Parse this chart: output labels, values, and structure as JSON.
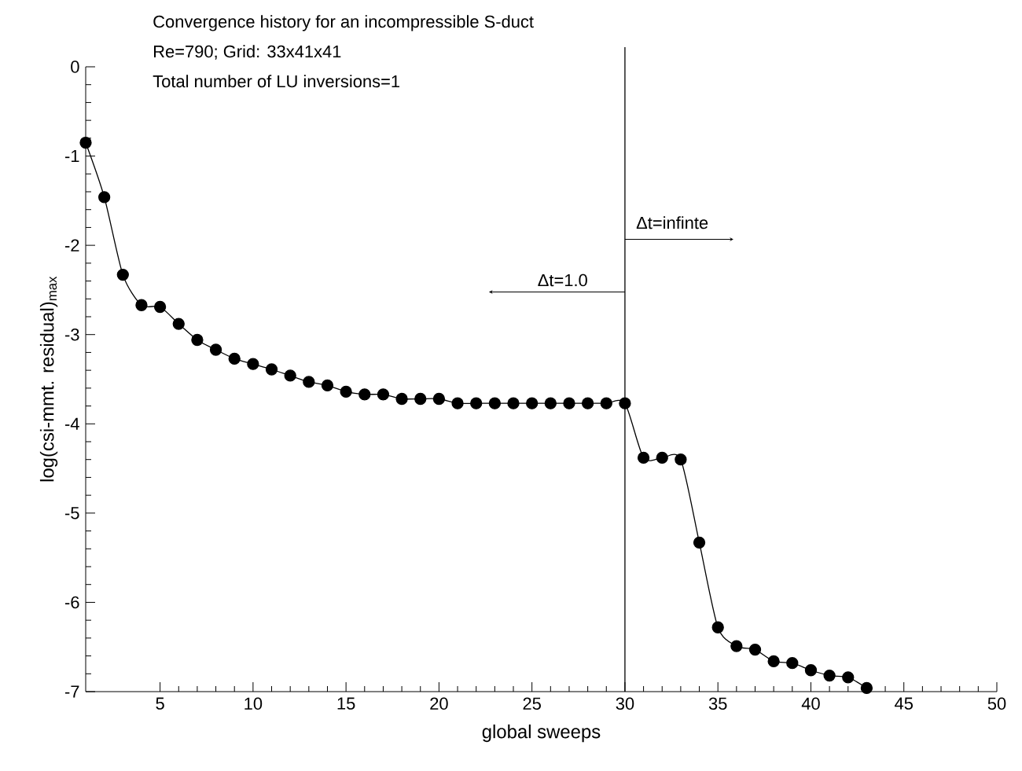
{
  "chart_data": {
    "type": "line",
    "title": "Convergence history for an incompressible S-duct",
    "subtitle": "Re=790; Grid: 33x41x41",
    "annotations": [
      "Total number of LU inversions=1",
      "Δt=1.0",
      "Δt=infinte"
    ],
    "xlabel": "global sweeps",
    "ylabel": "log(csi-mmt. residual)$_{max}$",
    "x": [
      1,
      2,
      3,
      4,
      5,
      6,
      7,
      8,
      9,
      10,
      11,
      12,
      13,
      14,
      15,
      16,
      17,
      18,
      19,
      20,
      21,
      22,
      23,
      24,
      25,
      26,
      27,
      28,
      29,
      30,
      31,
      32,
      33,
      34,
      35,
      36,
      37,
      38,
      39,
      40,
      41,
      42,
      43
    ],
    "values": [
      -0.85,
      -1.46,
      -2.33,
      -2.67,
      -2.69,
      -2.88,
      -3.06,
      -3.17,
      -3.27,
      -3.33,
      -3.39,
      -3.46,
      -3.53,
      -3.57,
      -3.64,
      -3.67,
      -3.67,
      -3.72,
      -3.72,
      -3.72,
      -3.77,
      -3.77,
      -3.77,
      -3.77,
      -3.77,
      -3.77,
      -3.77,
      -3.77,
      -3.77,
      -3.77,
      -4.38,
      -4.38,
      -4.4,
      -5.33,
      -6.28,
      -6.49,
      -6.53,
      -6.66,
      -6.68,
      -6.76,
      -6.82,
      -6.84,
      -6.96
    ],
    "color": "#000000",
    "marker": "circle",
    "line_style": "solid",
    "xlim": [
      1,
      50
    ],
    "ylim": [
      -7,
      0
    ],
    "xticks": [
      5,
      10,
      15,
      20,
      25,
      30,
      35,
      40,
      45,
      50
    ],
    "yticks": [
      -7,
      -6,
      -5,
      -4,
      -3,
      -2,
      -1,
      0
    ],
    "grid": false,
    "legend": false,
    "ref_lines": [
      {
        "axis": "x",
        "value": 30,
        "color": "#000000"
      }
    ]
  }
}
